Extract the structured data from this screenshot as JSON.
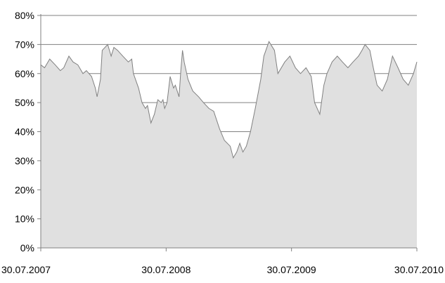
{
  "chart_data": {
    "type": "area",
    "title": "",
    "xlabel": "",
    "ylabel": "",
    "x_tick_labels": [
      "30.07.2007",
      "30.07.2008",
      "30.07.2009",
      "30.07.2010"
    ],
    "y_tick_labels": [
      "0%",
      "10%",
      "20%",
      "30%",
      "40%",
      "50%",
      "60%",
      "70%",
      "80%"
    ],
    "xlim": [
      "2007-07-30",
      "2010-07-30"
    ],
    "ylim": [
      0,
      80
    ],
    "grid": "horizontal",
    "legend": "none",
    "colors": {
      "area_fill": "#e0e0e0",
      "area_line": "#808080",
      "grid": "#808080",
      "axis": "#808080"
    },
    "series": [
      {
        "x": [
          "2007-07-30",
          "2007-08-10",
          "2007-08-25",
          "2007-09-10",
          "2007-09-25",
          "2007-10-05",
          "2007-10-20",
          "2007-11-01",
          "2007-11-15",
          "2007-11-30",
          "2007-12-10",
          "2007-12-25",
          "2008-01-05",
          "2008-01-10",
          "2008-01-20",
          "2008-01-25",
          "2008-02-10",
          "2008-02-20",
          "2008-02-28",
          "2008-03-10",
          "2008-03-25",
          "2008-04-10",
          "2008-04-20",
          "2008-04-25",
          "2008-05-10",
          "2008-05-20",
          "2008-05-30",
          "2008-06-05",
          "2008-06-15",
          "2008-06-25",
          "2008-07-05",
          "2008-07-15",
          "2008-07-20",
          "2008-07-25",
          "2008-08-01",
          "2008-08-10",
          "2008-08-20",
          "2008-08-25",
          "2008-09-05",
          "2008-09-10",
          "2008-09-15",
          "2008-09-20",
          "2008-10-01",
          "2008-10-15",
          "2008-11-01",
          "2008-11-15",
          "2008-12-01",
          "2008-12-15",
          "2009-01-01",
          "2009-01-15",
          "2009-02-01",
          "2009-02-10",
          "2009-02-20",
          "2009-03-01",
          "2009-03-10",
          "2009-03-20",
          "2009-04-01",
          "2009-04-15",
          "2009-05-01",
          "2009-05-10",
          "2009-05-25",
          "2009-06-10",
          "2009-06-20",
          "2009-07-10",
          "2009-07-25",
          "2009-08-10",
          "2009-08-25",
          "2009-09-10",
          "2009-09-25",
          "2009-10-05",
          "2009-10-20",
          "2009-11-01",
          "2009-11-10",
          "2009-11-25",
          "2009-12-10",
          "2009-12-25",
          "2010-01-10",
          "2010-01-25",
          "2010-02-10",
          "2010-02-20",
          "2010-03-01",
          "2010-03-15",
          "2010-03-25",
          "2010-04-05",
          "2010-04-20",
          "2010-05-05",
          "2010-05-20",
          "2010-06-05",
          "2010-06-20",
          "2010-07-05",
          "2010-07-20",
          "2010-07-30"
        ],
        "y": [
          63,
          62,
          65,
          63,
          61,
          62,
          66,
          64,
          63,
          60,
          61,
          59,
          55,
          52,
          58,
          68,
          70,
          66,
          69,
          68,
          66,
          64,
          65,
          60,
          55,
          50,
          48,
          49,
          43,
          46,
          51,
          50,
          51,
          48,
          50,
          59,
          55,
          56,
          52,
          61,
          68,
          64,
          58,
          54,
          52,
          50,
          48,
          47,
          41,
          37,
          35,
          31,
          33,
          36,
          33,
          35,
          40,
          48,
          58,
          66,
          71,
          68,
          60,
          64,
          66,
          62,
          60,
          62,
          59,
          50,
          46,
          56,
          60,
          64,
          66,
          64,
          62,
          64,
          66,
          68,
          70,
          68,
          62,
          56,
          54,
          58,
          66,
          62,
          58,
          56,
          60,
          64
        ]
      }
    ]
  }
}
